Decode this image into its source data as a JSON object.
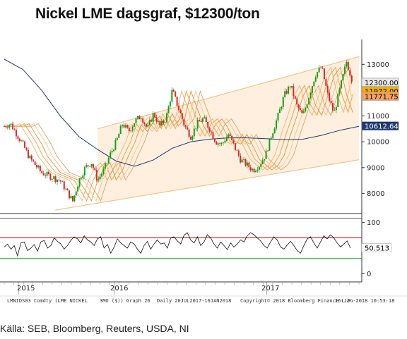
{
  "title": "Nickel LME dagsgraf, $12300/ton",
  "source": "Källa: SEB, Bloomberg, Reuters, USDA, NI",
  "footer": {
    "ticker": "LMNIDS03 Comdty (LME NICKEL",
    "params": "3MO ($)) Graph 26",
    "period": "Daily 20JUL2017-16JAN2018",
    "copyright": "Copyright© 2018 Bloomberg Finance L.P.",
    "timestamp": "16-Jan-2018 10:53:18"
  },
  "chart_data": [
    {
      "type": "candlestick",
      "title": "Nickel LME dagsgraf, $12300/ton",
      "y_ticks": [
        8000,
        9000,
        10000,
        11000,
        12000,
        13000
      ],
      "ylim": [
        7300,
        13800
      ],
      "x_ticks": [
        "2015",
        "2016",
        "2017"
      ],
      "price_tags": [
        {
          "value": "12300.00",
          "y": 12300,
          "color": "#e8e8e8",
          "text_color": "#000000"
        },
        {
          "value": "11972.00",
          "y": 11972,
          "color": "#f2b200",
          "text_color": "#000000"
        },
        {
          "value": "11771.75",
          "y": 11771.75,
          "color": "#f4a261",
          "text_color": "#000000"
        },
        {
          "value": "10612.64",
          "y": 10612.64,
          "color": "#1f3a73",
          "text_color": "#ffffff"
        }
      ],
      "channel": {
        "lower_start": 7600,
        "lower_end": 9300,
        "upper_start": 10500,
        "upper_end": 13300
      },
      "series": [
        {
          "name": "",
          "color": "#1f3a73",
          "values": [
            [
              0,
              13200
            ],
            [
              6,
              12800
            ],
            [
              12,
              12000
            ],
            [
              18,
              11000
            ],
            [
              24,
              10200
            ],
            [
              30,
              9700
            ],
            [
              36,
              9250
            ],
            [
              42,
              9050
            ],
            [
              48,
              9300
            ],
            [
              54,
              9750
            ],
            [
              60,
              10000
            ],
            [
              66,
              10100
            ],
            [
              72,
              10150
            ],
            [
              78,
              10150
            ],
            [
              84,
              10120
            ],
            [
              90,
              10080
            ],
            [
              96,
              10100
            ],
            [
              102,
              10250
            ],
            [
              108,
              10450
            ],
            [
              114,
              10600
            ]
          ]
        }
      ],
      "price": [
        [
          0,
          10600
        ],
        [
          2,
          10700
        ],
        [
          4,
          10300
        ],
        [
          6,
          9900
        ],
        [
          8,
          9400
        ],
        [
          10,
          9100
        ],
        [
          12,
          8800
        ],
        [
          14,
          8700
        ],
        [
          16,
          8600
        ],
        [
          18,
          8500
        ],
        [
          20,
          8100
        ],
        [
          22,
          7700
        ],
        [
          24,
          8500
        ],
        [
          26,
          9000
        ],
        [
          28,
          9200
        ],
        [
          30,
          8500
        ],
        [
          32,
          8900
        ],
        [
          34,
          9500
        ],
        [
          36,
          10000
        ],
        [
          38,
          10700
        ],
        [
          40,
          10400
        ],
        [
          42,
          10800
        ],
        [
          44,
          11000
        ],
        [
          46,
          10500
        ],
        [
          48,
          11100
        ],
        [
          50,
          10600
        ],
        [
          52,
          10900
        ],
        [
          54,
          12000
        ],
        [
          56,
          11300
        ],
        [
          58,
          10600
        ],
        [
          60,
          10200
        ],
        [
          62,
          10700
        ],
        [
          64,
          10900
        ],
        [
          66,
          10500
        ],
        [
          68,
          10000
        ],
        [
          70,
          9900
        ],
        [
          72,
          10300
        ],
        [
          74,
          9800
        ],
        [
          76,
          9300
        ],
        [
          78,
          9100
        ],
        [
          80,
          8900
        ],
        [
          82,
          9100
        ],
        [
          84,
          9500
        ],
        [
          86,
          10300
        ],
        [
          88,
          11000
        ],
        [
          90,
          11800
        ],
        [
          92,
          12200
        ],
        [
          94,
          11400
        ],
        [
          96,
          11000
        ],
        [
          98,
          11800
        ],
        [
          100,
          12600
        ],
        [
          102,
          12900
        ],
        [
          104,
          11800
        ],
        [
          106,
          11100
        ],
        [
          108,
          12100
        ],
        [
          110,
          13100
        ],
        [
          112,
          12300
        ]
      ]
    },
    {
      "type": "line",
      "title": "",
      "y_ticks": [
        0,
        50,
        100
      ],
      "ylim": [
        -5,
        105
      ],
      "reference_lines": [
        {
          "y": 70,
          "color": "#c00000"
        },
        {
          "y": 30,
          "color": "#2eb82e"
        }
      ],
      "current_value": "50.513",
      "values": [
        52,
        58,
        48,
        55,
        35,
        60,
        62,
        45,
        50,
        57,
        44,
        62,
        65,
        50,
        55,
        70,
        63,
        58,
        48,
        55,
        65,
        72,
        68,
        60,
        74,
        66,
        62,
        55,
        68,
        72,
        50,
        57,
        40,
        52,
        68,
        60,
        55,
        50,
        62,
        58,
        48,
        40,
        55,
        63,
        48,
        58,
        66,
        58,
        60,
        50,
        70,
        72,
        64,
        58,
        75,
        80,
        66,
        60,
        72,
        55,
        62,
        76,
        70,
        58,
        50,
        62,
        55,
        47,
        60,
        52,
        58,
        66,
        62,
        74,
        80,
        76,
        70,
        64,
        55,
        50,
        62,
        72,
        66,
        52,
        48,
        56,
        63,
        55,
        45,
        40,
        55,
        68,
        72,
        60,
        50,
        62,
        74,
        68,
        76,
        70,
        60,
        52,
        58,
        64,
        50
      ]
    }
  ]
}
